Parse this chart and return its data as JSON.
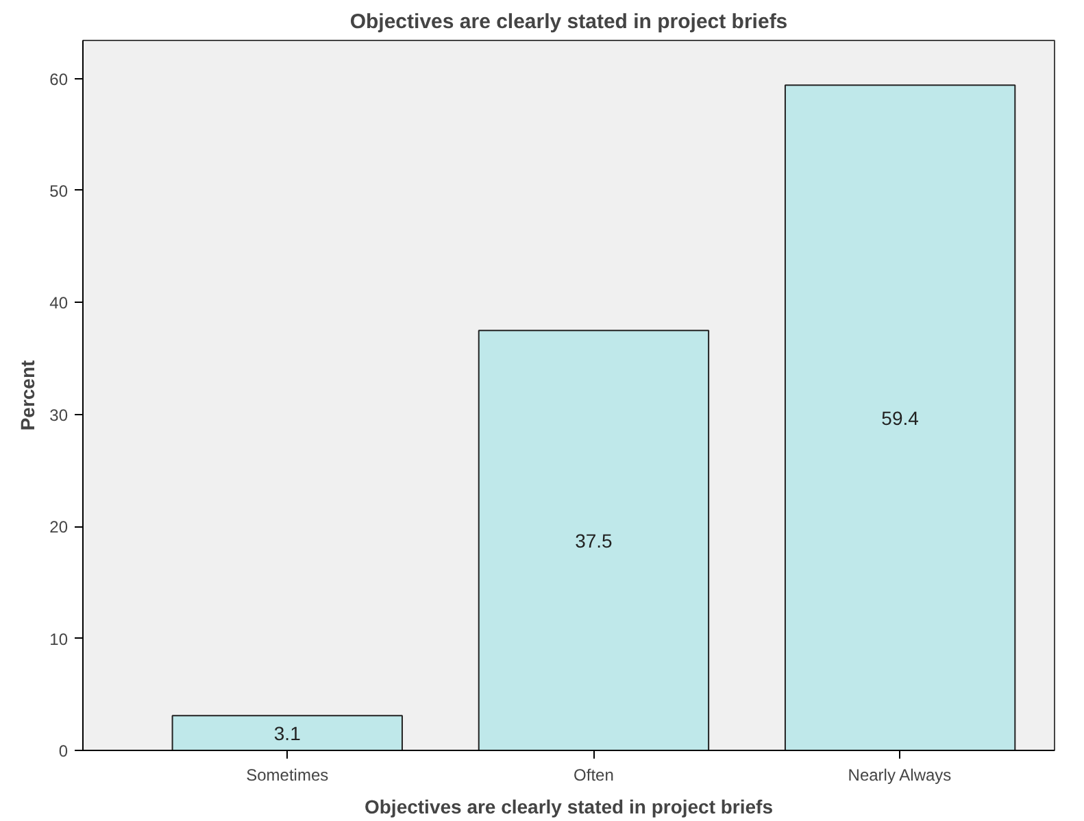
{
  "chart_data": {
    "type": "bar",
    "title": "Objectives are clearly stated in project briefs",
    "xlabel": "Objectives are clearly stated in project briefs",
    "ylabel": "Percent",
    "categories": [
      "Sometimes",
      "Often",
      "Nearly Always"
    ],
    "values": [
      3.1,
      37.5,
      59.4
    ],
    "color": "#bfe8ea",
    "ylim": [
      0,
      63.4
    ],
    "yticks": [
      0,
      10,
      20,
      30,
      40,
      50,
      60
    ],
    "data_labels": true,
    "grid": false
  }
}
